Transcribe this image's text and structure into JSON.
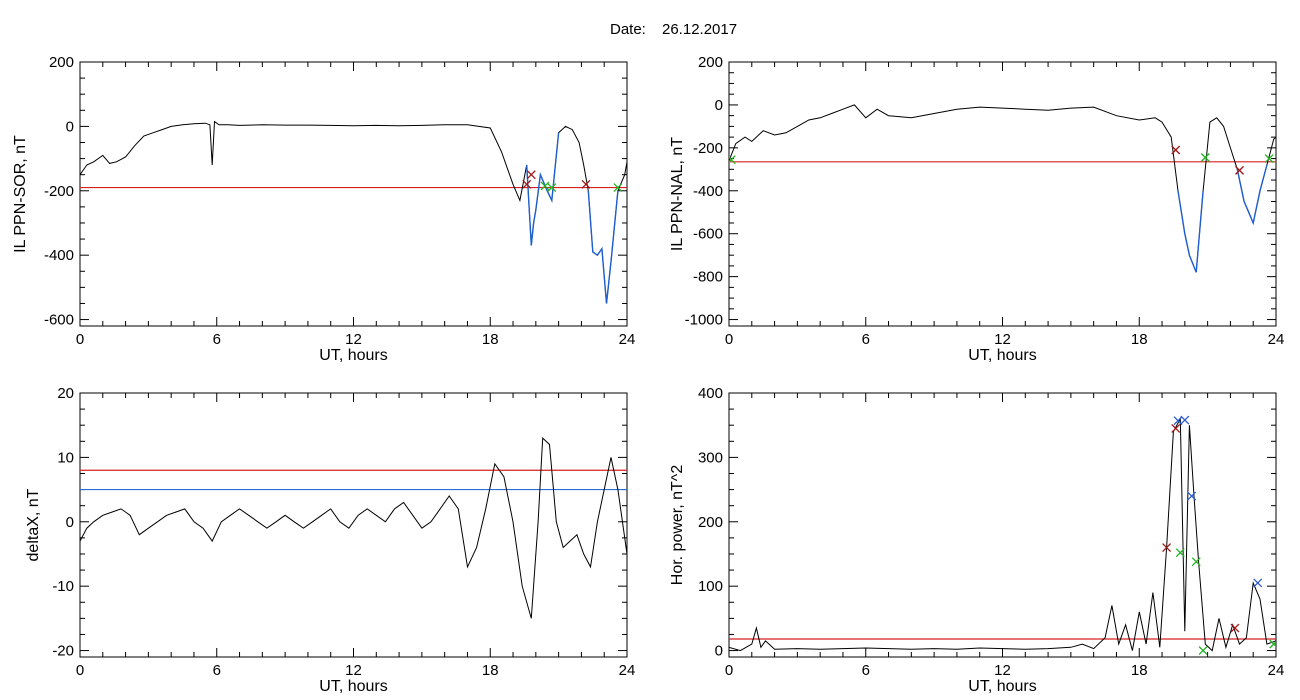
{
  "figure": {
    "date_label": "Date:",
    "date_value": "26.12.2017"
  },
  "colors": {
    "series": "#000000",
    "highlight": "#1f5fd1",
    "threshold_red": "#d62020",
    "threshold_blue": "#2a6fd6",
    "marker_red": "#a01818",
    "marker_green": "#22b022",
    "marker_blue": "#2a5ad0",
    "marker_black": "#202020"
  },
  "chart_data": [
    {
      "id": "p1",
      "type": "line",
      "xlabel": "UT, hours",
      "ylabel": "IL PPN-SOR, nT",
      "xlim": [
        0,
        24
      ],
      "ylim": [
        -620,
        200
      ],
      "xticks": [
        0,
        6,
        12,
        18,
        24
      ],
      "yticks": [
        -600,
        -400,
        -200,
        0,
        200
      ],
      "x": [
        0,
        0.3,
        0.6,
        1,
        1.3,
        1.6,
        2,
        2.4,
        2.8,
        3.2,
        3.6,
        4,
        4.5,
        5,
        5.5,
        5.7,
        5.8,
        5.9,
        6.1,
        6.5,
        7,
        8,
        9,
        10,
        11,
        12,
        13,
        14,
        15,
        16,
        17,
        18,
        18.5,
        19,
        19.3,
        19.6,
        19.8,
        19.9,
        20,
        20.2,
        20.5,
        20.7,
        21,
        21.3,
        21.6,
        21.9,
        22.1,
        22.3,
        22.5,
        22.7,
        22.9,
        23.1,
        23.3,
        23.6,
        23.9,
        24
      ],
      "y": [
        -150,
        -120,
        -110,
        -90,
        -115,
        -110,
        -95,
        -60,
        -30,
        -20,
        -10,
        0,
        5,
        8,
        10,
        5,
        -120,
        15,
        5,
        5,
        3,
        5,
        4,
        4,
        3,
        2,
        3,
        2,
        3,
        5,
        5,
        -5,
        -80,
        -180,
        -230,
        -120,
        -370,
        -300,
        -260,
        -150,
        -200,
        -230,
        -20,
        0,
        -10,
        -50,
        -120,
        -200,
        -390,
        -400,
        -380,
        -550,
        -420,
        -200,
        -150,
        -110
      ],
      "highlight_ranges": [
        [
          19.5,
          21.0
        ],
        [
          22.2,
          23.7
        ]
      ],
      "hlines": [
        {
          "y": -190,
          "color": "threshold_red"
        }
      ],
      "markers": [
        {
          "x": 19.6,
          "y": -180,
          "color": "marker_red"
        },
        {
          "x": 19.8,
          "y": -150,
          "color": "marker_red"
        },
        {
          "x": 20.4,
          "y": -185,
          "color": "marker_green"
        },
        {
          "x": 20.7,
          "y": -190,
          "color": "marker_green"
        },
        {
          "x": 22.2,
          "y": -180,
          "color": "marker_red"
        },
        {
          "x": 23.6,
          "y": -190,
          "color": "marker_green"
        }
      ]
    },
    {
      "id": "p2",
      "type": "line",
      "xlabel": "UT, hours",
      "ylabel": "IL PPN-NAL, nT",
      "xlim": [
        0,
        24
      ],
      "ylim": [
        -1030,
        200
      ],
      "xticks": [
        0,
        6,
        12,
        18,
        24
      ],
      "yticks": [
        -1000,
        -800,
        -600,
        -400,
        -200,
        0,
        200
      ],
      "x": [
        0,
        0.3,
        0.7,
        1,
        1.5,
        2,
        2.5,
        3,
        3.5,
        4,
        4.5,
        5,
        5.5,
        6,
        6.5,
        7,
        8,
        9,
        10,
        11,
        12,
        13,
        14,
        15,
        16,
        17,
        18,
        18.7,
        19,
        19.4,
        19.7,
        20,
        20.2,
        20.5,
        20.8,
        21.1,
        21.4,
        21.7,
        22,
        22.3,
        22.6,
        22.8,
        23,
        23.3,
        23.6,
        23.9,
        24
      ],
      "y": [
        -260,
        -180,
        -150,
        -170,
        -120,
        -140,
        -130,
        -100,
        -70,
        -60,
        -40,
        -20,
        0,
        -60,
        -20,
        -50,
        -60,
        -40,
        -20,
        -10,
        -15,
        -20,
        -25,
        -15,
        -10,
        -50,
        -70,
        -60,
        -80,
        -150,
        -400,
        -600,
        -700,
        -780,
        -400,
        -80,
        -60,
        -100,
        -200,
        -300,
        -450,
        -500,
        -550,
        -400,
        -280,
        -160,
        -150
      ],
      "highlight_ranges": [
        [
          19.6,
          20.8
        ],
        [
          22.3,
          23.8
        ]
      ],
      "hlines": [
        {
          "y": -265,
          "color": "threshold_red"
        }
      ],
      "markers": [
        {
          "x": 0.1,
          "y": -255,
          "color": "marker_green"
        },
        {
          "x": 19.6,
          "y": -210,
          "color": "marker_red"
        },
        {
          "x": 20.9,
          "y": -245,
          "color": "marker_green"
        },
        {
          "x": 22.4,
          "y": -305,
          "color": "marker_red"
        },
        {
          "x": 23.7,
          "y": -250,
          "color": "marker_green"
        }
      ]
    },
    {
      "id": "p3",
      "type": "line",
      "xlabel": "UT, hours",
      "ylabel": "deltaX, nT",
      "xlim": [
        0,
        24
      ],
      "ylim": [
        -21,
        20
      ],
      "xticks": [
        0,
        6,
        12,
        18,
        24
      ],
      "yticks": [
        -20,
        -10,
        0,
        10,
        20
      ],
      "x": [
        0,
        0.3,
        0.6,
        1,
        1.4,
        1.8,
        2.2,
        2.6,
        3,
        3.4,
        3.8,
        4.2,
        4.6,
        5,
        5.4,
        5.8,
        6.2,
        6.6,
        7,
        7.4,
        7.8,
        8.2,
        8.6,
        9,
        9.4,
        9.8,
        10.2,
        10.6,
        11,
        11.4,
        11.8,
        12.2,
        12.6,
        13,
        13.4,
        13.8,
        14.2,
        14.6,
        15,
        15.4,
        15.8,
        16.2,
        16.6,
        17,
        17.4,
        17.8,
        18.2,
        18.6,
        19,
        19.4,
        19.8,
        20.1,
        20.3,
        20.6,
        20.9,
        21.2,
        21.5,
        21.8,
        22.1,
        22.4,
        22.7,
        23,
        23.3,
        23.6,
        24
      ],
      "y": [
        -3,
        -1,
        0,
        1,
        1.5,
        2,
        1,
        -2,
        -1,
        0,
        1,
        1.5,
        2,
        0,
        -1,
        -3,
        0,
        1,
        2,
        1,
        0,
        -1,
        0,
        1,
        0,
        -1,
        0,
        1,
        2,
        0,
        -1,
        1,
        2,
        1,
        0,
        2,
        3,
        1,
        -1,
        0,
        2,
        4,
        2,
        -7,
        -4,
        2,
        9,
        7,
        0,
        -10,
        -15,
        0,
        13,
        12,
        0,
        -4,
        -3,
        -2,
        -5,
        -7,
        0,
        5,
        10,
        5,
        -5
      ],
      "hlines": [
        {
          "y": 8,
          "color": "threshold_red"
        },
        {
          "y": 5,
          "color": "threshold_blue"
        }
      ],
      "markers": []
    },
    {
      "id": "p4",
      "type": "line",
      "xlabel": "UT, hours",
      "ylabel": "Hor. power, nT^2",
      "xlim": [
        0,
        24
      ],
      "ylim": [
        -10,
        400
      ],
      "xticks": [
        0,
        6,
        12,
        18,
        24
      ],
      "yticks": [
        0,
        100,
        200,
        300,
        400
      ],
      "x": [
        0,
        0.5,
        1,
        1.2,
        1.4,
        1.6,
        2,
        3,
        4,
        5,
        6,
        7,
        8,
        9,
        10,
        11,
        12,
        13,
        14,
        15,
        15.5,
        16,
        16.5,
        16.8,
        17.1,
        17.4,
        17.7,
        18,
        18.3,
        18.6,
        18.9,
        19.2,
        19.5,
        19.8,
        20,
        20.2,
        20.4,
        20.6,
        20.9,
        21.2,
        21.5,
        21.8,
        22.1,
        22.4,
        22.7,
        23,
        23.3,
        23.6,
        24
      ],
      "y": [
        5,
        0,
        10,
        35,
        5,
        15,
        2,
        3,
        2,
        3,
        4,
        3,
        2,
        3,
        2,
        4,
        3,
        2,
        3,
        5,
        10,
        3,
        20,
        70,
        10,
        40,
        0,
        60,
        10,
        90,
        5,
        160,
        340,
        360,
        30,
        350,
        240,
        140,
        10,
        0,
        50,
        5,
        40,
        10,
        20,
        105,
        80,
        10,
        15
      ],
      "hlines": [
        {
          "y": 18,
          "color": "threshold_red"
        }
      ],
      "markers": [
        {
          "x": 19.2,
          "y": 160,
          "color": "marker_red"
        },
        {
          "x": 19.6,
          "y": 345,
          "color": "marker_red"
        },
        {
          "x": 19.7,
          "y": 357,
          "color": "marker_blue"
        },
        {
          "x": 19.8,
          "y": 152,
          "color": "marker_green"
        },
        {
          "x": 20.0,
          "y": 358,
          "color": "marker_blue"
        },
        {
          "x": 20.3,
          "y": 240,
          "color": "marker_blue"
        },
        {
          "x": 20.5,
          "y": 138,
          "color": "marker_green"
        },
        {
          "x": 20.8,
          "y": 0,
          "color": "marker_green"
        },
        {
          "x": 22.2,
          "y": 35,
          "color": "marker_red"
        },
        {
          "x": 23.2,
          "y": 105,
          "color": "marker_blue"
        },
        {
          "x": 23.9,
          "y": 10,
          "color": "marker_green"
        }
      ]
    }
  ]
}
